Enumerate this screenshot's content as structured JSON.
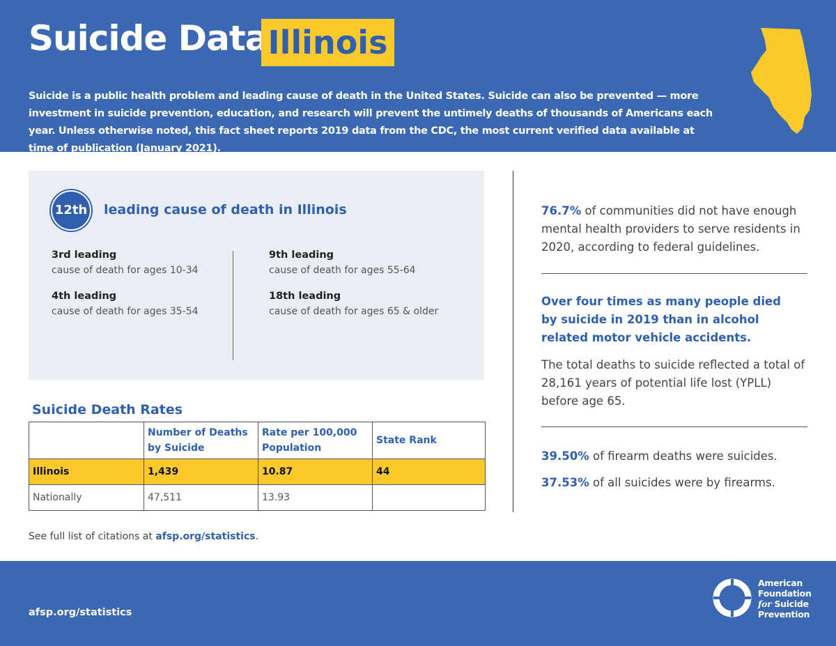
{
  "header": {
    "title": "Suicide Data:",
    "state": "Illinois",
    "intro": "Suicide is a public health problem and leading cause of death in the United States. Suicide can also be prevented — more investment in suicide prevention, education, and research will prevent the untimely deaths of thousands of Americans each year. Unless otherwise noted, this fact sheet reports 2019 data from the CDC, the most current verified data available at time of publication (January 2021)."
  },
  "rank_box": {
    "rank": "12th",
    "headline": "leading cause of death in Illinois",
    "items": [
      {
        "rank": "3rd leading",
        "text": "cause of death for ages 10-34"
      },
      {
        "rank": "4th leading",
        "text": "cause of death for ages 35-54"
      },
      {
        "rank": "9th leading",
        "text": "cause of death for ages 55-64"
      },
      {
        "rank": "18th leading",
        "text": "cause of death for ages 65 & older"
      }
    ]
  },
  "table": {
    "title": "Suicide Death Rates",
    "columns": [
      "Number of Deaths by Suicide",
      "Rate per 100,000 Population",
      "State Rank"
    ],
    "rows": [
      [
        "Illinois",
        "1,439",
        "10.87",
        "44"
      ],
      [
        "Nationally",
        "47,511",
        "13.93"
      ]
    ]
  },
  "citation": {
    "text": "See full list of citations at",
    "link": "afsp.org/statistics",
    "end": "."
  },
  "stats": {
    "providers": {
      "highlight": "76.7%",
      "text": "of communities did not have enough mental health providers to serve residents in 2020, according to federal guidelines."
    },
    "comparison": {
      "headline": "Over four times as many people died by suicide in 2019 than in alcohol related motor vehicle accidents.",
      "text": "The total deaths to suicide reflected a total of 28,161 years of potential life lost (YPLL) before age 65."
    },
    "firearm_deaths": {
      "highlight": "39.50%",
      "text": "of firearm deaths were suicides."
    },
    "firearm_suicides": {
      "highlight": "37.53%",
      "text": "of all suicides were by firearms."
    }
  },
  "footer": {
    "url": "afsp.org/statistics",
    "org": [
      "American",
      "Foundation",
      "for",
      "Suicide",
      "Prevention"
    ]
  }
}
